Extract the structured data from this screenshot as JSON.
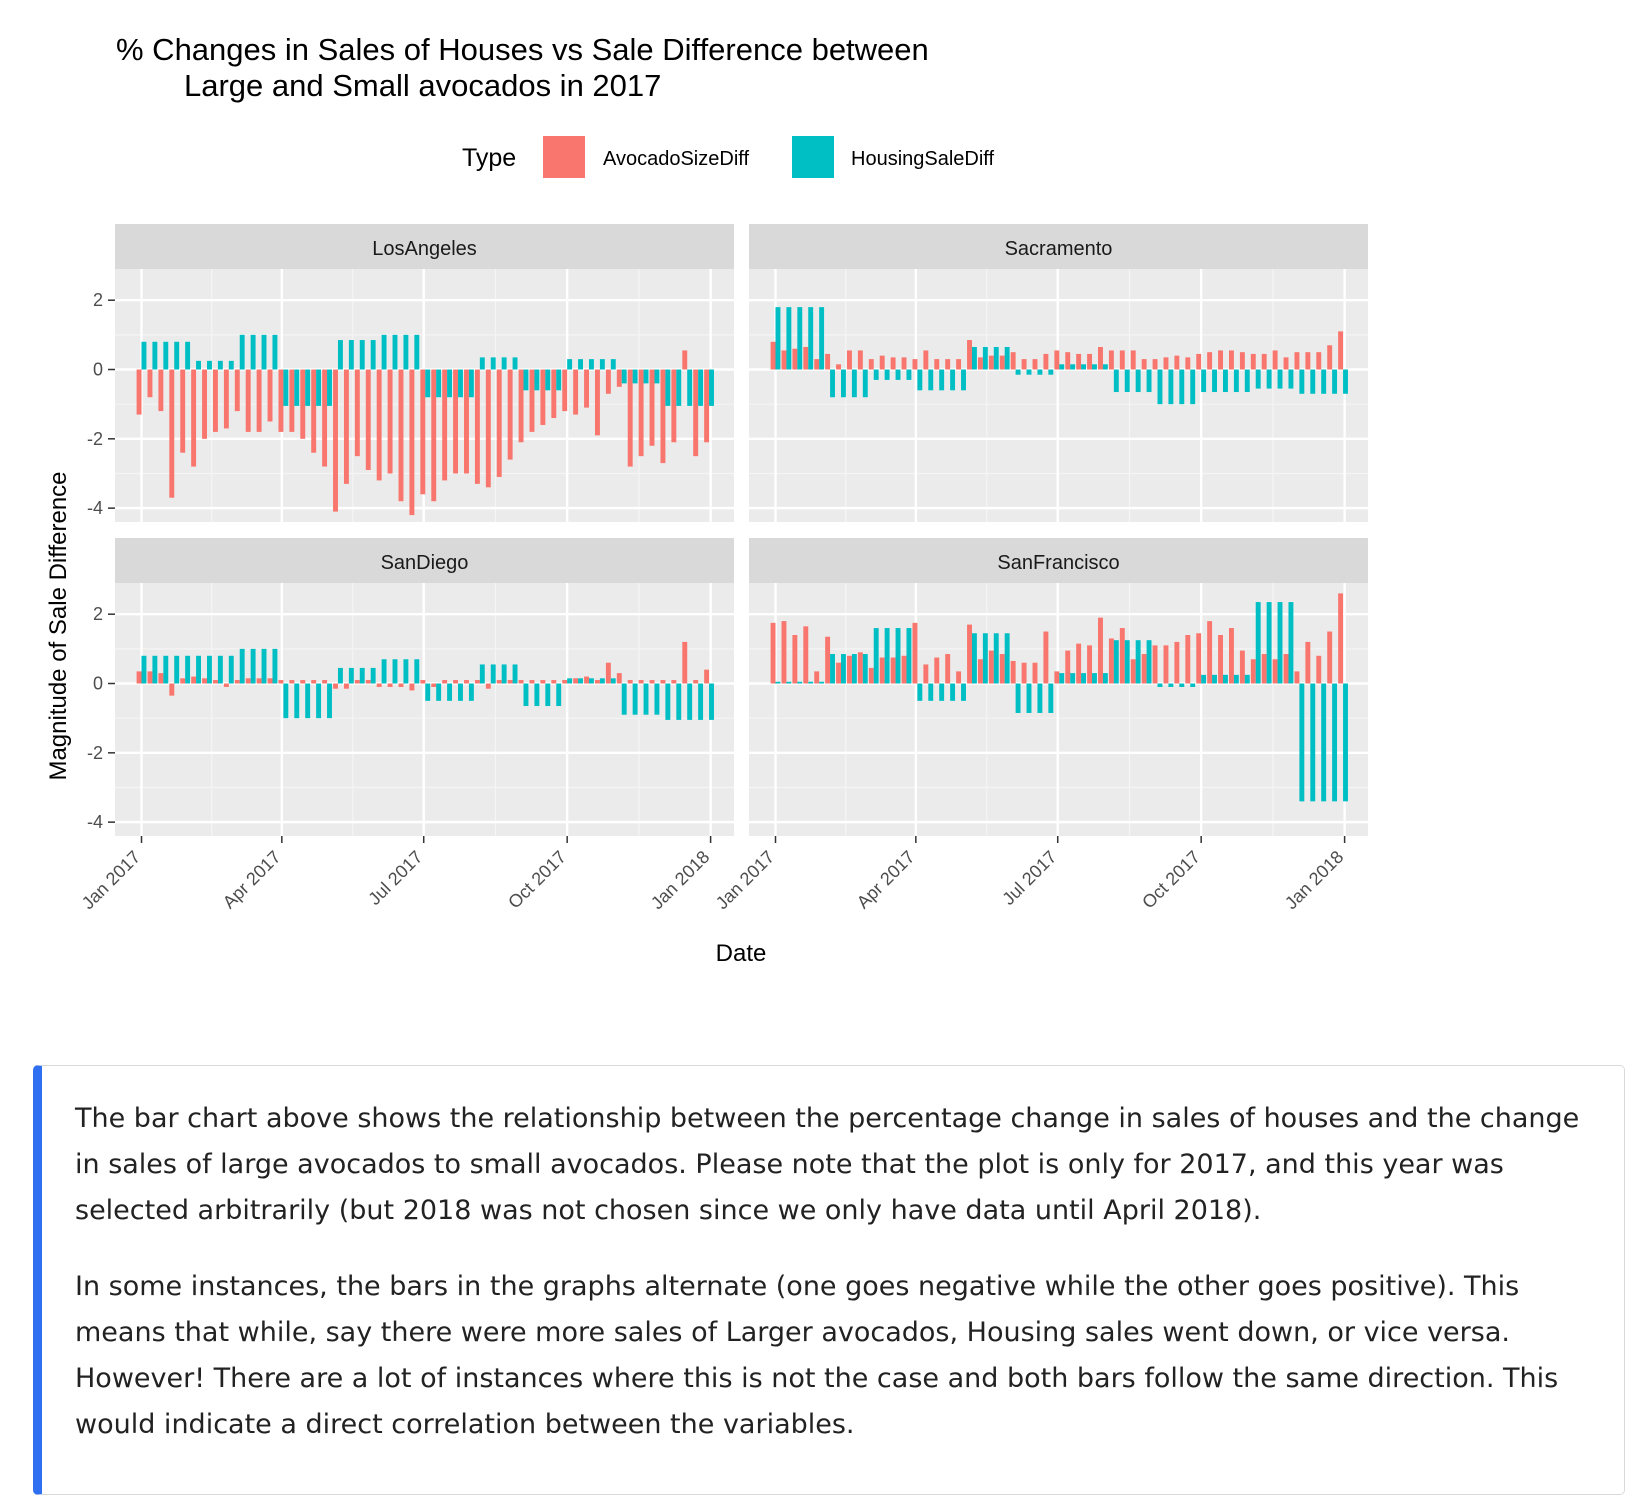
{
  "chart_data": {
    "type": "bar",
    "title_line1": "% Changes in Sales of Houses vs Sale Difference between",
    "title_line2": "Large and Small avocados in 2017",
    "xlabel": "Date",
    "ylabel": "Magnitude of Sale Difference",
    "legend": {
      "title": "Type",
      "placement": "top",
      "entries": [
        {
          "name": "AvocadoSizeDiff",
          "color": "#F8766D"
        },
        {
          "name": "HousingSaleDiff",
          "color": "#00BFC4"
        }
      ]
    },
    "facets": [
      "LosAngeles",
      "Sacramento",
      "SanDiego",
      "SanFrancisco"
    ],
    "x_ticks": [
      "Jan 2017",
      "Apr 2017",
      "Jul 2017",
      "Oct 2017",
      "Jan 2018"
    ],
    "y_ticks": [
      "2",
      "0",
      "-2",
      "-4"
    ],
    "ylim": [
      -4.4,
      2.9
    ],
    "grid": true,
    "weeks": [
      "2017-01-01",
      "2017-01-08",
      "2017-01-15",
      "2017-01-22",
      "2017-01-29",
      "2017-02-05",
      "2017-02-12",
      "2017-02-19",
      "2017-02-26",
      "2017-03-05",
      "2017-03-12",
      "2017-03-19",
      "2017-03-26",
      "2017-04-02",
      "2017-04-09",
      "2017-04-16",
      "2017-04-23",
      "2017-04-30",
      "2017-05-07",
      "2017-05-14",
      "2017-05-21",
      "2017-05-28",
      "2017-06-04",
      "2017-06-11",
      "2017-06-18",
      "2017-06-25",
      "2017-07-02",
      "2017-07-09",
      "2017-07-16",
      "2017-07-23",
      "2017-07-30",
      "2017-08-06",
      "2017-08-13",
      "2017-08-20",
      "2017-08-27",
      "2017-09-03",
      "2017-09-10",
      "2017-09-17",
      "2017-09-24",
      "2017-10-01",
      "2017-10-08",
      "2017-10-15",
      "2017-10-22",
      "2017-10-29",
      "2017-11-05",
      "2017-11-12",
      "2017-11-19",
      "2017-11-26",
      "2017-12-03",
      "2017-12-10",
      "2017-12-17",
      "2017-12-24",
      "2017-12-31"
    ],
    "series": {
      "LosAngeles": {
        "AvocadoSizeDiff": [
          -1.3,
          -0.8,
          -1.2,
          -3.7,
          -2.4,
          -2.8,
          -2.0,
          -1.8,
          -1.7,
          -1.2,
          -1.8,
          -1.8,
          -1.5,
          -1.8,
          -1.8,
          -2.0,
          -2.4,
          -2.8,
          -4.1,
          -3.3,
          -2.5,
          -2.9,
          -3.2,
          -3.0,
          -3.8,
          -4.2,
          -3.6,
          -3.8,
          -3.2,
          -3.0,
          -3.0,
          -3.3,
          -3.4,
          -3.1,
          -2.6,
          -2.1,
          -1.8,
          -1.6,
          -1.4,
          -1.2,
          -1.3,
          -1.1,
          -1.9,
          -0.7,
          -0.5,
          -2.8,
          -2.5,
          -2.2,
          -2.7,
          -2.1,
          0.55,
          -2.5,
          -2.1
        ],
        "HousingSaleDiff": [
          0.8,
          0.8,
          0.8,
          0.8,
          0.8,
          0.25,
          0.25,
          0.25,
          0.25,
          1.0,
          1.0,
          1.0,
          1.0,
          -1.05,
          -1.05,
          -1.05,
          -1.05,
          -1.05,
          0.85,
          0.85,
          0.85,
          0.85,
          1.0,
          1.0,
          1.0,
          1.0,
          -0.8,
          -0.8,
          -0.8,
          -0.8,
          -0.8,
          0.35,
          0.35,
          0.35,
          0.35,
          -0.6,
          -0.6,
          -0.6,
          -0.6,
          0.3,
          0.3,
          0.3,
          0.3,
          0.3,
          -0.4,
          -0.4,
          -0.4,
          -0.4,
          -1.05,
          -1.05,
          -1.05,
          -1.05,
          -1.05
        ]
      },
      "Sacramento": {
        "AvocadoSizeDiff": [
          0.8,
          0.55,
          0.6,
          0.65,
          0.3,
          0.45,
          0.15,
          0.55,
          0.55,
          0.3,
          0.4,
          0.35,
          0.35,
          0.3,
          0.55,
          0.3,
          0.3,
          0.3,
          0.85,
          0.35,
          0.4,
          0.4,
          0.5,
          0.3,
          0.3,
          0.45,
          0.55,
          0.5,
          0.45,
          0.45,
          0.65,
          0.55,
          0.55,
          0.55,
          0.3,
          0.3,
          0.35,
          0.4,
          0.35,
          0.45,
          0.5,
          0.55,
          0.55,
          0.5,
          0.45,
          0.45,
          0.55,
          0.35,
          0.5,
          0.5,
          0.5,
          0.7,
          1.1
        ],
        "HousingSaleDiff": [
          1.8,
          1.8,
          1.8,
          1.8,
          1.8,
          -0.8,
          -0.8,
          -0.8,
          -0.8,
          -0.3,
          -0.3,
          -0.3,
          -0.3,
          -0.6,
          -0.6,
          -0.6,
          -0.6,
          -0.6,
          0.65,
          0.65,
          0.65,
          0.65,
          -0.15,
          -0.15,
          -0.15,
          -0.15,
          0.15,
          0.15,
          0.15,
          0.15,
          0.15,
          -0.65,
          -0.65,
          -0.65,
          -0.65,
          -1.0,
          -1.0,
          -1.0,
          -1.0,
          -0.65,
          -0.65,
          -0.65,
          -0.65,
          -0.65,
          -0.55,
          -0.55,
          -0.55,
          -0.55,
          -0.7,
          -0.7,
          -0.7,
          -0.7,
          -0.7
        ]
      },
      "SanDiego": {
        "AvocadoSizeDiff": [
          0.35,
          0.35,
          0.3,
          -0.35,
          0.15,
          0.2,
          0.15,
          0.1,
          -0.1,
          0.1,
          0.15,
          0.15,
          0.15,
          0.1,
          0.1,
          0.1,
          0.1,
          0.1,
          -0.15,
          -0.15,
          0.1,
          0.1,
          -0.1,
          -0.1,
          -0.1,
          -0.2,
          0.1,
          -0.1,
          0.1,
          0.1,
          0.1,
          0.1,
          -0.15,
          0.1,
          0.1,
          0.1,
          0.1,
          0.1,
          0.1,
          0.1,
          0.15,
          0.2,
          0.1,
          0.6,
          0.3,
          0.1,
          0.1,
          0.1,
          0.1,
          0.1,
          1.2,
          0.1,
          0.4
        ],
        "HousingSaleDiff": [
          0.8,
          0.8,
          0.8,
          0.8,
          0.8,
          0.8,
          0.8,
          0.8,
          0.8,
          1.0,
          1.0,
          1.0,
          1.0,
          -1.0,
          -1.0,
          -1.0,
          -1.0,
          -1.0,
          0.45,
          0.45,
          0.45,
          0.45,
          0.7,
          0.7,
          0.7,
          0.7,
          -0.5,
          -0.5,
          -0.5,
          -0.5,
          -0.5,
          0.55,
          0.55,
          0.55,
          0.55,
          -0.65,
          -0.65,
          -0.65,
          -0.65,
          0.15,
          0.15,
          0.15,
          0.15,
          0.15,
          -0.9,
          -0.9,
          -0.9,
          -0.9,
          -1.05,
          -1.05,
          -1.05,
          -1.05,
          -1.05
        ]
      },
      "SanFrancisco": {
        "AvocadoSizeDiff": [
          1.75,
          1.8,
          1.4,
          1.65,
          0.35,
          1.35,
          0.6,
          0.8,
          0.9,
          0.45,
          0.75,
          0.75,
          0.8,
          1.75,
          0.55,
          0.75,
          0.85,
          0.35,
          1.7,
          0.7,
          0.95,
          0.85,
          0.65,
          0.6,
          0.6,
          1.5,
          0.35,
          0.95,
          1.15,
          1.1,
          1.9,
          1.3,
          1.6,
          0.7,
          0.85,
          1.1,
          1.1,
          1.2,
          1.4,
          1.45,
          1.8,
          1.4,
          1.6,
          0.95,
          0.7,
          0.85,
          0.7,
          0.85,
          0.35,
          1.2,
          0.8,
          1.5,
          2.6
        ],
        "HousingSaleDiff": [
          0.05,
          0.05,
          0.05,
          0.05,
          0.05,
          0.85,
          0.85,
          0.85,
          0.85,
          1.6,
          1.6,
          1.6,
          1.6,
          -0.5,
          -0.5,
          -0.5,
          -0.5,
          -0.5,
          1.45,
          1.45,
          1.45,
          1.45,
          -0.85,
          -0.85,
          -0.85,
          -0.85,
          0.3,
          0.3,
          0.3,
          0.3,
          0.3,
          1.25,
          1.25,
          1.25,
          1.25,
          -0.1,
          -0.1,
          -0.1,
          -0.1,
          0.25,
          0.25,
          0.25,
          0.25,
          0.25,
          2.35,
          2.35,
          2.35,
          2.35,
          -3.4,
          -3.4,
          -3.4,
          -3.4,
          -3.4
        ]
      }
    }
  },
  "notes": {
    "p1": "The bar chart above shows the relationship between the percentage change in sales of houses and the change in sales of large avocados to small avocados. Please note that the plot is only for 2017, and this year was selected arbitrarily (but 2018 was not chosen since we only have data until April 2018).",
    "p2": "In some instances, the bars in the graphs alternate (one goes negative while the other goes positive). This means that while, say there were more sales of Larger avocados, Housing sales went down, or vice versa. However! There are a lot of instances where this is not the case and both bars follow the same direction. This would indicate a direct correlation between the variables."
  }
}
